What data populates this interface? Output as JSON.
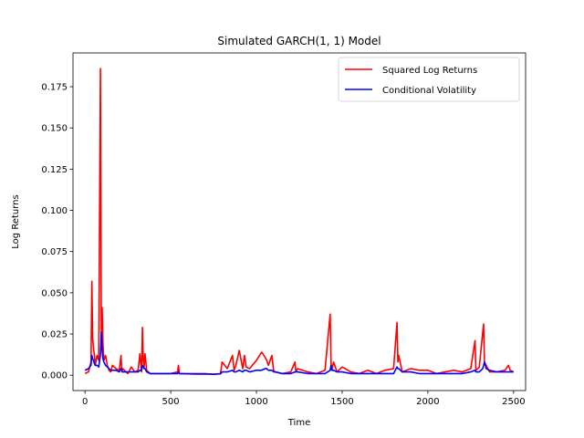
{
  "chart_data": {
    "type": "line",
    "title": "Simulated GARCH(1, 1) Model",
    "xlabel": "Time",
    "ylabel": "Log Returns",
    "xlim": [
      -70,
      2570
    ],
    "ylim": [
      -0.0093,
      0.1955
    ],
    "xticks": [
      0,
      500,
      1000,
      1500,
      2000,
      2500
    ],
    "yticks": [
      0.0,
      0.025,
      0.05,
      0.075,
      0.1,
      0.125,
      0.15,
      0.175
    ],
    "ytick_labels": [
      "0.000",
      "0.025",
      "0.050",
      "0.075",
      "0.100",
      "0.125",
      "0.150",
      "0.175"
    ],
    "grid": false,
    "legend": "top-right",
    "series": [
      {
        "name": "Squared Log Returns",
        "color": "#ff0000",
        "x": [
          0,
          20,
          35,
          40,
          45,
          50,
          55,
          60,
          70,
          80,
          90,
          95,
          100,
          105,
          110,
          120,
          130,
          140,
          150,
          160,
          180,
          200,
          210,
          215,
          220,
          250,
          270,
          290,
          310,
          320,
          330,
          335,
          340,
          345,
          350,
          360,
          380,
          400,
          450,
          500,
          540,
          545,
          550,
          600,
          650,
          700,
          750,
          790,
          800,
          830,
          860,
          870,
          880,
          900,
          920,
          930,
          940,
          960,
          1000,
          1030,
          1050,
          1060,
          1070,
          1090,
          1100,
          1110,
          1150,
          1200,
          1225,
          1230,
          1240,
          1300,
          1350,
          1400,
          1430,
          1435,
          1440,
          1450,
          1470,
          1500,
          1550,
          1600,
          1650,
          1700,
          1750,
          1800,
          1820,
          1825,
          1830,
          1850,
          1900,
          1950,
          2000,
          2050,
          2100,
          2150,
          2200,
          2250,
          2275,
          2280,
          2300,
          2320,
          2325,
          2330,
          2340,
          2360,
          2400,
          2450,
          2470,
          2480,
          2500
        ],
        "y": [
          0.001,
          0.002,
          0.008,
          0.057,
          0.022,
          0.016,
          0.012,
          0.006,
          0.012,
          0.009,
          0.186,
          0.026,
          0.041,
          0.018,
          0.009,
          0.012,
          0.006,
          0.003,
          0.002,
          0.006,
          0.004,
          0.003,
          0.012,
          0.002,
          0.004,
          0.001,
          0.005,
          0.002,
          0.003,
          0.013,
          0.002,
          0.029,
          0.009,
          0.005,
          0.013,
          0.003,
          0.001,
          0.001,
          0.001,
          0.001,
          0.002,
          0.006,
          0.001,
          0.001,
          0.001,
          0.001,
          0.0005,
          0.001,
          0.008,
          0.004,
          0.012,
          0.003,
          0.006,
          0.015,
          0.004,
          0.012,
          0.005,
          0.004,
          0.009,
          0.014,
          0.011,
          0.009,
          0.006,
          0.012,
          0.003,
          0.002,
          0.001,
          0.002,
          0.008,
          0.002,
          0.004,
          0.002,
          0.001,
          0.003,
          0.037,
          0.008,
          0.003,
          0.008,
          0.002,
          0.005,
          0.002,
          0.001,
          0.003,
          0.001,
          0.003,
          0.004,
          0.032,
          0.008,
          0.012,
          0.002,
          0.004,
          0.003,
          0.003,
          0.001,
          0.002,
          0.003,
          0.002,
          0.004,
          0.021,
          0.003,
          0.005,
          0.026,
          0.031,
          0.008,
          0.006,
          0.002,
          0.002,
          0.003,
          0.006,
          0.003,
          0.002
        ]
      },
      {
        "name": "Conditional Volatility",
        "color": "#0000ff",
        "x": [
          0,
          20,
          35,
          40,
          45,
          50,
          55,
          60,
          70,
          80,
          90,
          95,
          100,
          105,
          110,
          120,
          130,
          140,
          150,
          160,
          180,
          200,
          210,
          215,
          220,
          250,
          270,
          290,
          310,
          320,
          330,
          335,
          340,
          345,
          350,
          360,
          380,
          400,
          450,
          500,
          540,
          545,
          550,
          600,
          650,
          700,
          750,
          790,
          800,
          830,
          860,
          870,
          880,
          900,
          920,
          930,
          940,
          960,
          1000,
          1030,
          1050,
          1060,
          1070,
          1090,
          1100,
          1110,
          1150,
          1200,
          1225,
          1230,
          1240,
          1300,
          1350,
          1400,
          1430,
          1435,
          1440,
          1450,
          1470,
          1500,
          1550,
          1600,
          1650,
          1700,
          1750,
          1800,
          1820,
          1825,
          1830,
          1850,
          1900,
          1950,
          2000,
          2050,
          2100,
          2150,
          2200,
          2250,
          2275,
          2280,
          2300,
          2320,
          2325,
          2330,
          2340,
          2360,
          2400,
          2450,
          2470,
          2480,
          2500
        ],
        "y": [
          0.003,
          0.004,
          0.006,
          0.012,
          0.01,
          0.009,
          0.007,
          0.006,
          0.006,
          0.005,
          0.012,
          0.026,
          0.015,
          0.01,
          0.008,
          0.006,
          0.005,
          0.004,
          0.003,
          0.003,
          0.003,
          0.002,
          0.004,
          0.003,
          0.002,
          0.002,
          0.002,
          0.002,
          0.002,
          0.003,
          0.003,
          0.006,
          0.005,
          0.004,
          0.004,
          0.002,
          0.001,
          0.001,
          0.001,
          0.001,
          0.001,
          0.002,
          0.001,
          0.0008,
          0.0007,
          0.0007,
          0.0006,
          0.0008,
          0.002,
          0.002,
          0.003,
          0.002,
          0.002,
          0.003,
          0.002,
          0.003,
          0.003,
          0.002,
          0.003,
          0.003,
          0.004,
          0.004,
          0.003,
          0.003,
          0.002,
          0.002,
          0.001,
          0.001,
          0.002,
          0.002,
          0.002,
          0.001,
          0.001,
          0.001,
          0.003,
          0.006,
          0.003,
          0.003,
          0.002,
          0.002,
          0.001,
          0.001,
          0.001,
          0.001,
          0.001,
          0.001,
          0.005,
          0.004,
          0.004,
          0.002,
          0.002,
          0.001,
          0.001,
          0.001,
          0.001,
          0.001,
          0.001,
          0.002,
          0.003,
          0.002,
          0.002,
          0.004,
          0.006,
          0.008,
          0.004,
          0.003,
          0.002,
          0.002,
          0.002,
          0.002,
          0.002
        ]
      }
    ]
  }
}
